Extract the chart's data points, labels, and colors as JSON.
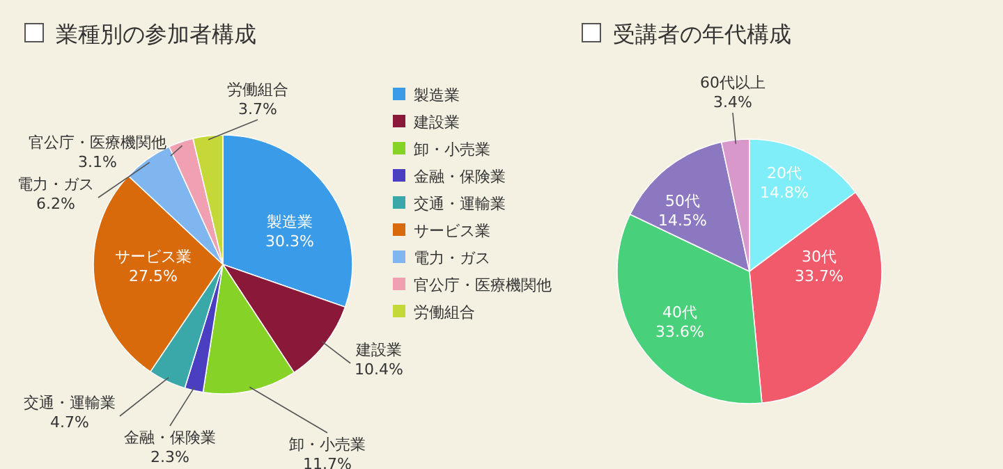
{
  "chart_data": [
    {
      "type": "pie",
      "title": "業種別の参加者構成",
      "categories": [
        "製造業",
        "建設業",
        "卸・小売業",
        "金融・保険業",
        "交通・運輸業",
        "サービス業",
        "電力・ガス",
        "官公庁・医療機関他",
        "労働組合"
      ],
      "values": [
        30.3,
        10.4,
        11.7,
        2.3,
        4.7,
        27.5,
        6.2,
        3.1,
        3.7
      ],
      "colors": [
        "#3a9be8",
        "#8a1838",
        "#86d226",
        "#4a3fc0",
        "#3aa8a8",
        "#d86a0c",
        "#80b6f0",
        "#f0a0b0",
        "#c6d838"
      ],
      "value_labels": [
        "30.3%",
        "10.4%",
        "11.7%",
        "2.3%",
        "4.7%",
        "27.5%",
        "6.2%",
        "3.1%",
        "3.7%"
      ],
      "legend": "right"
    },
    {
      "type": "pie",
      "title": "受講者の年代構成",
      "categories": [
        "20代",
        "30代",
        "40代",
        "50代",
        "60代以上"
      ],
      "values": [
        14.8,
        33.7,
        33.6,
        14.5,
        3.4
      ],
      "colors": [
        "#80eef8",
        "#f05a6a",
        "#48d07a",
        "#8c78c0",
        "#d898cc"
      ],
      "value_labels": [
        "14.8%",
        "33.7%",
        "33.6%",
        "14.5%",
        "3.4%"
      ]
    }
  ]
}
